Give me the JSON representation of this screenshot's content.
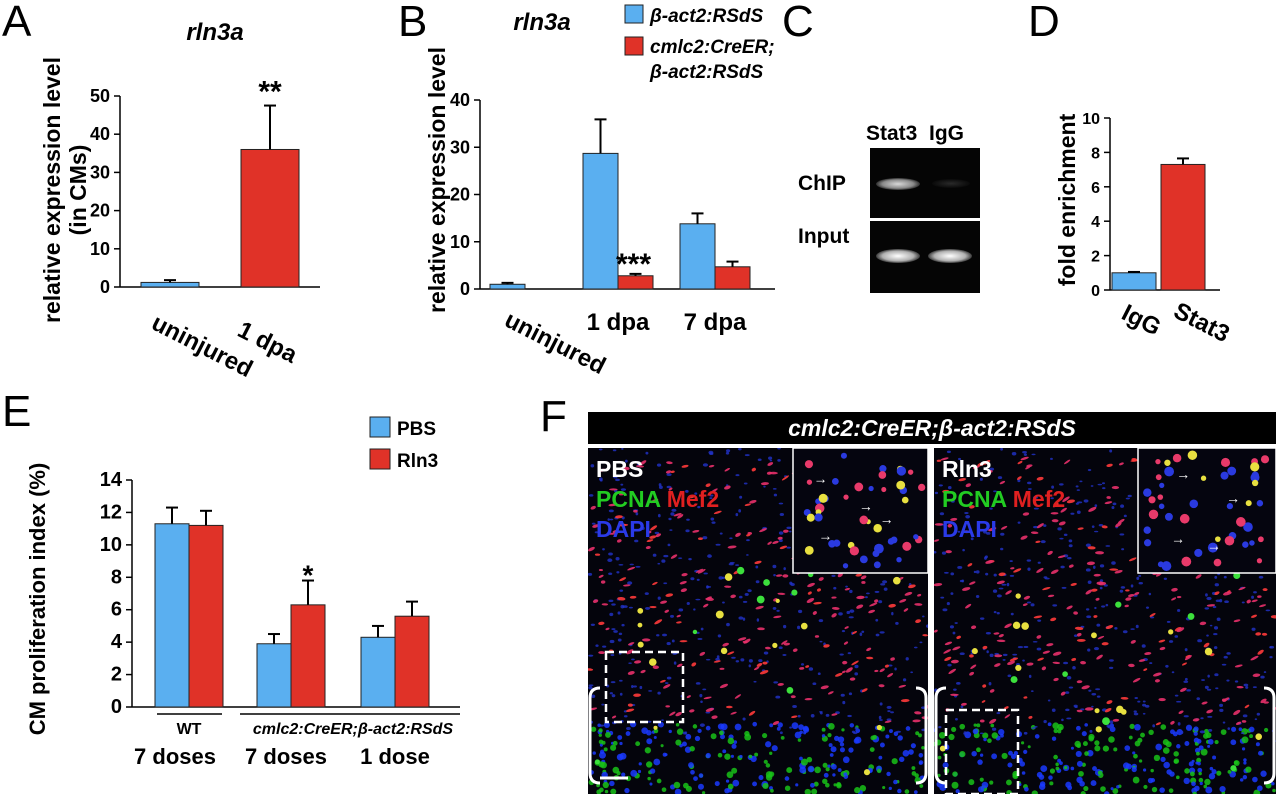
{
  "panels": {
    "A": "A",
    "B": "B",
    "C": "C",
    "D": "D",
    "E": "E",
    "F": "F"
  },
  "colors": {
    "blue": "#5aaff0",
    "red": "#e03228"
  },
  "chart_data": [
    {
      "id": "A",
      "type": "bar",
      "title": "rln3a",
      "ylabel_line1": "relative expression level",
      "ylabel_line2": "(in CMs)",
      "categories": [
        "uninjured",
        "1 dpa"
      ],
      "values": [
        1.2,
        36.0
      ],
      "errors": [
        0.6,
        11.5
      ],
      "colors": [
        "#5aaff0",
        "#e03228"
      ],
      "ylim": [
        0,
        50
      ],
      "yticks": [
        "0",
        "10",
        "20",
        "30",
        "40",
        "50"
      ],
      "annotations": [
        {
          "index": 1,
          "text": "**"
        }
      ]
    },
    {
      "id": "B",
      "type": "bar",
      "title": "rln3a",
      "ylabel": "relative expression level",
      "categories": [
        "uninjured",
        "1 dpa",
        "7 dpa"
      ],
      "series": [
        {
          "name": "β-act2:RSdS",
          "values": [
            1.0,
            28.7,
            13.8
          ],
          "errors": [
            0.3,
            7.2,
            2.2
          ]
        },
        {
          "name": "cmlc2:CreER; β-act2:RSdS",
          "values": [
            null,
            2.8,
            4.7
          ],
          "errors": [
            null,
            0.4,
            1.1
          ]
        }
      ],
      "legend": {
        "entries": [
          "β-act2:RSdS",
          "cmlc2:CreER;",
          "β-act2:RSdS"
        ]
      },
      "ylim": [
        0,
        40
      ],
      "yticks": [
        "0",
        "10",
        "20",
        "30",
        "40"
      ],
      "annotations": [
        {
          "category": 1,
          "text": "***"
        }
      ]
    },
    {
      "id": "C",
      "type": "gel",
      "lanes": [
        "Stat3",
        "IgG"
      ],
      "rows": [
        "ChIP",
        "Input"
      ]
    },
    {
      "id": "D",
      "type": "bar",
      "ylabel": "fold enrichment",
      "categories": [
        "IgG",
        "Stat3"
      ],
      "values": [
        1.0,
        7.3
      ],
      "errors": [
        0.05,
        0.35
      ],
      "colors": [
        "#5aaff0",
        "#e03228"
      ],
      "ylim": [
        0,
        10
      ],
      "yticks": [
        "0",
        "2",
        "4",
        "6",
        "8",
        "10"
      ]
    },
    {
      "id": "E",
      "type": "bar",
      "ylabel": "CM proliferation index (%)",
      "groups": [
        {
          "genotype": "WT",
          "dose": "7 doses"
        },
        {
          "genotype": "cmlc2:CreER;β-act2:RSdS",
          "dose": "7 doses"
        },
        {
          "genotype": "",
          "dose": "1 dose"
        }
      ],
      "series": [
        {
          "name": "PBS",
          "values": [
            11.3,
            3.9,
            4.3
          ],
          "errors": [
            1.0,
            0.6,
            0.7
          ]
        },
        {
          "name": "Rln3",
          "values": [
            11.2,
            6.3,
            5.6
          ],
          "errors": [
            0.9,
            1.5,
            0.9
          ]
        }
      ],
      "ylim": [
        0,
        14
      ],
      "yticks": [
        "0",
        "2",
        "4",
        "6",
        "8",
        "10",
        "12",
        "14"
      ],
      "annotations": [
        {
          "group": 1,
          "series": 1,
          "text": "*"
        }
      ]
    }
  ],
  "panel_F": {
    "header": "cmlc2:CreER;β-act2:RSdS",
    "left": {
      "treatment": "PBS",
      "stain1": "PCNA",
      "stain2": "Mef2",
      "stain3": "DAPI"
    },
    "right": {
      "treatment": "Rln3",
      "stain1": "PCNA",
      "stain2": "Mef2",
      "stain3": "DAPI"
    }
  }
}
